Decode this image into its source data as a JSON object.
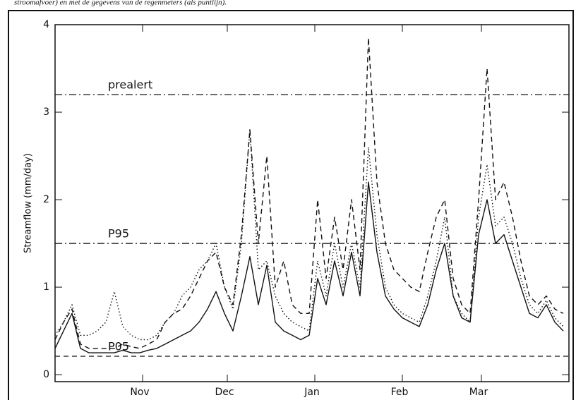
{
  "caption": "stroomafvoer) en met de gegevens van de regenmeters (als puntlijn).",
  "chart_data": {
    "type": "line",
    "ylabel": "Streamflow (mm/day)",
    "xlim": [
      0,
      182
    ],
    "ylim": [
      -0.08,
      4
    ],
    "yticks": [
      0,
      1,
      2,
      3,
      4
    ],
    "xticks": [
      {
        "value": 31,
        "label": "Nov"
      },
      {
        "value": 61,
        "label": "Dec"
      },
      {
        "value": 92,
        "label": "Jan"
      },
      {
        "value": 123,
        "label": "Feb"
      },
      {
        "value": 151,
        "label": "Mar"
      }
    ],
    "x": [
      0,
      3,
      6,
      9,
      12,
      15,
      18,
      21,
      24,
      27,
      30,
      33,
      36,
      39,
      42,
      45,
      48,
      51,
      54,
      57,
      60,
      63,
      66,
      69,
      72,
      75,
      78,
      81,
      84,
      87,
      90,
      93,
      96,
      99,
      102,
      105,
      108,
      111,
      114,
      117,
      120,
      123,
      126,
      129,
      132,
      135,
      138,
      141,
      144,
      147,
      150,
      153,
      156,
      159,
      162,
      165,
      168,
      171,
      174,
      177,
      180
    ],
    "series": [
      {
        "color": "#111111",
        "style": "solid",
        "values": [
          0.3,
          0.5,
          0.7,
          0.3,
          0.25,
          0.25,
          0.25,
          0.25,
          0.28,
          0.25,
          0.25,
          0.28,
          0.3,
          0.35,
          0.4,
          0.45,
          0.5,
          0.6,
          0.75,
          0.95,
          0.7,
          0.5,
          0.9,
          1.35,
          0.8,
          1.25,
          0.6,
          0.5,
          0.45,
          0.4,
          0.45,
          1.1,
          0.8,
          1.3,
          0.9,
          1.4,
          0.9,
          2.2,
          1.4,
          0.9,
          0.75,
          0.65,
          0.6,
          0.55,
          0.8,
          1.2,
          1.5,
          0.9,
          0.65,
          0.6,
          1.6,
          2.0,
          1.5,
          1.6,
          1.3,
          1.0,
          0.7,
          0.65,
          0.8,
          0.6,
          0.5
        ]
      },
      {
        "color": "#111111",
        "style": "dashed",
        "values": [
          0.4,
          0.6,
          0.75,
          0.35,
          0.3,
          0.3,
          0.3,
          0.3,
          0.35,
          0.32,
          0.3,
          0.35,
          0.4,
          0.6,
          0.7,
          0.75,
          0.9,
          1.1,
          1.3,
          1.4,
          1.0,
          0.8,
          1.6,
          2.8,
          1.5,
          2.5,
          1.0,
          1.3,
          0.8,
          0.7,
          0.7,
          2.0,
          1.1,
          1.8,
          1.2,
          2.0,
          1.2,
          3.85,
          2.2,
          1.5,
          1.2,
          1.1,
          1.0,
          0.95,
          1.4,
          1.8,
          2.0,
          1.1,
          0.8,
          0.7,
          2.0,
          3.5,
          2.0,
          2.2,
          1.8,
          1.3,
          0.9,
          0.8,
          0.9,
          0.75,
          0.7
        ]
      },
      {
        "color": "#111111",
        "style": "dotted",
        "values": [
          0.45,
          0.6,
          0.8,
          0.45,
          0.45,
          0.5,
          0.6,
          0.95,
          0.55,
          0.45,
          0.4,
          0.4,
          0.45,
          0.6,
          0.7,
          0.9,
          1.0,
          1.2,
          1.3,
          1.5,
          1.0,
          0.75,
          1.5,
          2.8,
          1.2,
          1.3,
          0.9,
          0.7,
          0.6,
          0.55,
          0.5,
          1.3,
          0.9,
          1.5,
          1.0,
          1.5,
          1.0,
          2.6,
          1.6,
          1.0,
          0.8,
          0.7,
          0.65,
          0.6,
          0.9,
          1.3,
          1.8,
          0.9,
          0.7,
          0.6,
          1.8,
          2.4,
          1.7,
          1.8,
          1.5,
          1.1,
          0.8,
          0.7,
          0.85,
          0.65,
          0.55
        ]
      }
    ],
    "reference_lines": [
      {
        "label": "prealert",
        "value": 3.2,
        "style": "dashdot"
      },
      {
        "label": "P95",
        "value": 1.5,
        "style": "dashdot"
      },
      {
        "label": "P05",
        "value": 0.21,
        "style": "dashed"
      }
    ]
  }
}
